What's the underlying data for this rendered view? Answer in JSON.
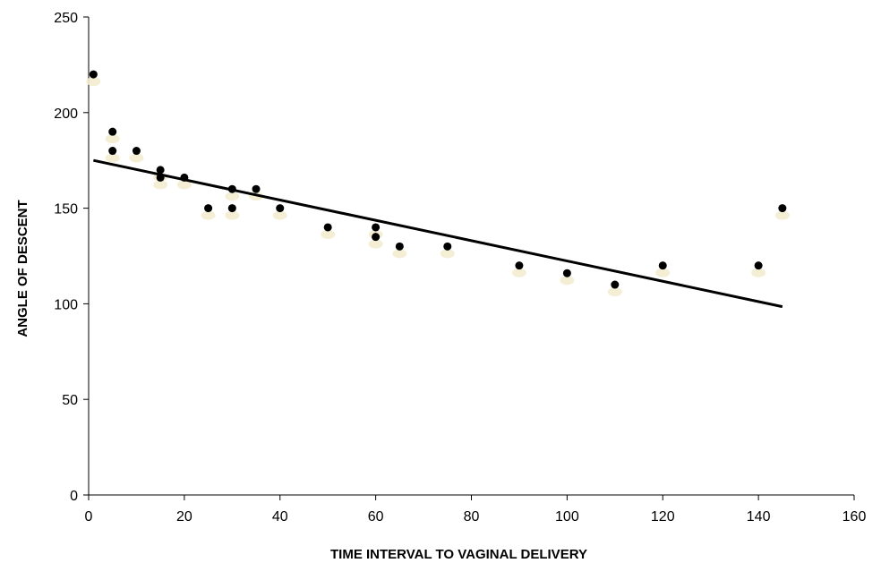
{
  "chart_data": {
    "type": "scatter",
    "title": "",
    "xlabel": "TIME INTERVAL TO VAGINAL DELIVERY",
    "ylabel": "ANGLE OF DESCENT",
    "xlim": [
      0,
      160
    ],
    "ylim": [
      0,
      250
    ],
    "xticks": [
      "0",
      "20",
      "40",
      "60",
      "80",
      "100",
      "120",
      "140",
      "160"
    ],
    "yticks": [
      "0",
      "50",
      "100",
      "150",
      "200",
      "250"
    ],
    "grid": false,
    "legend": "none",
    "colors": {
      "points": "#000000",
      "trendline": "#000000",
      "point_shadow": "#f3ecd0"
    },
    "series": [
      {
        "points": [
          [
            1,
            220
          ],
          [
            5,
            190
          ],
          [
            5,
            180
          ],
          [
            10,
            180
          ],
          [
            15,
            170
          ],
          [
            15,
            166
          ],
          [
            20,
            166
          ],
          [
            25,
            150
          ],
          [
            30,
            160
          ],
          [
            30,
            150
          ],
          [
            35,
            160
          ],
          [
            40,
            150
          ],
          [
            50,
            140
          ],
          [
            60,
            140
          ],
          [
            60,
            135
          ],
          [
            65,
            130
          ],
          [
            75,
            130
          ],
          [
            90,
            120
          ],
          [
            100,
            116
          ],
          [
            110,
            110
          ],
          [
            120,
            120
          ],
          [
            140,
            120
          ],
          [
            145,
            150
          ]
        ]
      }
    ],
    "trendline": {
      "type": "linear",
      "x": [
        1,
        145
      ],
      "y": [
        175,
        98.5
      ]
    }
  }
}
